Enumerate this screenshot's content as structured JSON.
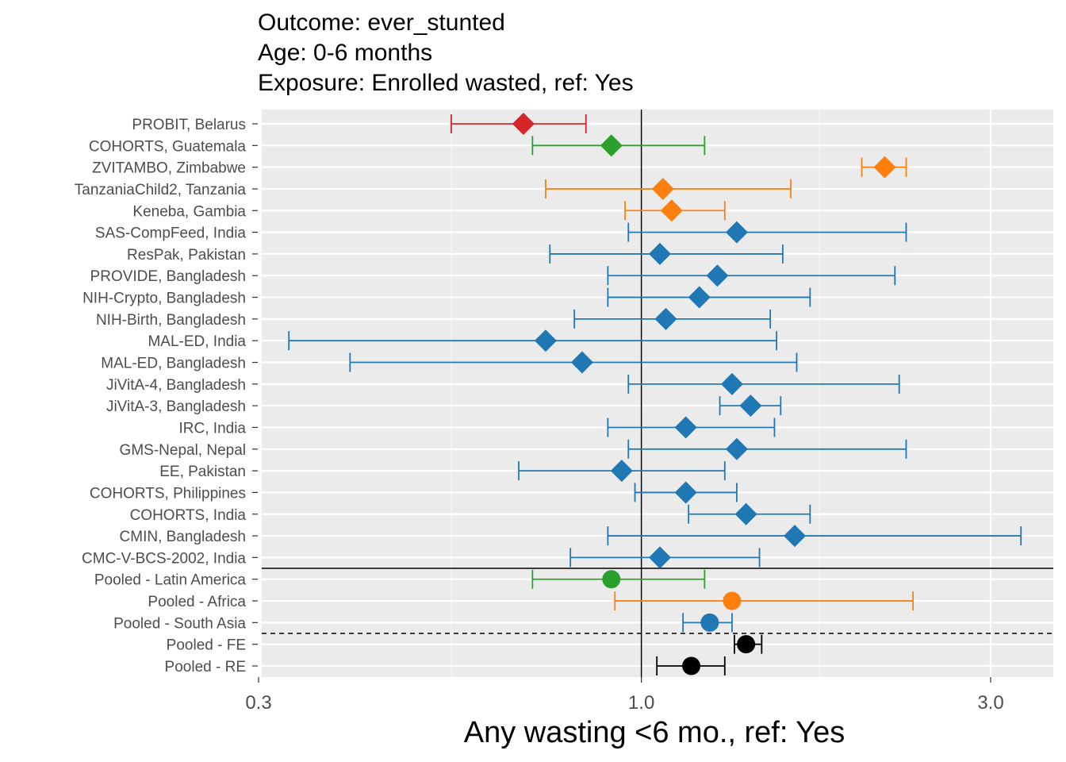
{
  "title_lines": [
    "Outcome: ever_stunted",
    "Age: 0-6 months",
    "Exposure: Enrolled wasted, ref: Yes"
  ],
  "chart_data": {
    "type": "scatter",
    "subtype": "forest-plot",
    "x_scale": "log",
    "xlabel": "Any wasting  <6 mo., ref: Yes",
    "xlim": [
      0.3,
      3.6
    ],
    "x_ticks": [
      {
        "value": 0.3,
        "label": "0.3"
      },
      {
        "value": 1.0,
        "label": "1.0"
      },
      {
        "value": 3.0,
        "label": "3.0"
      }
    ],
    "x_minor_ticks": [
      0.55,
      1.75
    ],
    "reference_line_x": 1.0,
    "region_colors": {
      "Europe": "#d62728",
      "Latin America": "#2ca02c",
      "Africa": "#ff7f0e",
      "South Asia": "#1f77b4",
      "Overall": "#000000"
    },
    "rows": [
      {
        "label": "PROBIT, Belarus",
        "est": 0.69,
        "lo": 0.55,
        "hi": 0.84,
        "region": "Europe",
        "shape": "diamond"
      },
      {
        "label": "COHORTS, Guatemala",
        "est": 0.91,
        "lo": 0.71,
        "hi": 1.22,
        "region": "Latin America",
        "shape": "diamond"
      },
      {
        "label": "ZVITAMBO, Zimbabwe",
        "est": 2.15,
        "lo": 2.0,
        "hi": 2.3,
        "region": "Africa",
        "shape": "diamond"
      },
      {
        "label": "TanzaniaChild2, Tanzania",
        "est": 1.07,
        "lo": 0.74,
        "hi": 1.6,
        "region": "Africa",
        "shape": "diamond"
      },
      {
        "label": "Keneba, Gambia",
        "est": 1.1,
        "lo": 0.95,
        "hi": 1.3,
        "region": "Africa",
        "shape": "diamond"
      },
      {
        "label": "SAS-CompFeed, India",
        "est": 1.35,
        "lo": 0.96,
        "hi": 2.3,
        "region": "South Asia",
        "shape": "diamond"
      },
      {
        "label": "ResPak, Pakistan",
        "est": 1.06,
        "lo": 0.75,
        "hi": 1.56,
        "region": "South Asia",
        "shape": "diamond"
      },
      {
        "label": "PROVIDE, Bangladesh",
        "est": 1.27,
        "lo": 0.9,
        "hi": 2.22,
        "region": "South Asia",
        "shape": "diamond"
      },
      {
        "label": "NIH-Crypto, Bangladesh",
        "est": 1.2,
        "lo": 0.9,
        "hi": 1.7,
        "region": "South Asia",
        "shape": "diamond"
      },
      {
        "label": "NIH-Birth, Bangladesh",
        "est": 1.08,
        "lo": 0.81,
        "hi": 1.5,
        "region": "South Asia",
        "shape": "diamond"
      },
      {
        "label": "MAL-ED, India",
        "est": 0.74,
        "lo": 0.33,
        "hi": 1.53,
        "region": "South Asia",
        "shape": "diamond"
      },
      {
        "label": "MAL-ED, Bangladesh",
        "est": 0.83,
        "lo": 0.4,
        "hi": 1.63,
        "region": "South Asia",
        "shape": "diamond"
      },
      {
        "label": "JiVitA-4, Bangladesh",
        "est": 1.33,
        "lo": 0.96,
        "hi": 2.25,
        "region": "South Asia",
        "shape": "diamond"
      },
      {
        "label": "JiVitA-3, Bangladesh",
        "est": 1.41,
        "lo": 1.28,
        "hi": 1.55,
        "region": "South Asia",
        "shape": "diamond"
      },
      {
        "label": "IRC, India",
        "est": 1.15,
        "lo": 0.9,
        "hi": 1.52,
        "region": "South Asia",
        "shape": "diamond"
      },
      {
        "label": "GMS-Nepal, Nepal",
        "est": 1.35,
        "lo": 0.96,
        "hi": 2.3,
        "region": "South Asia",
        "shape": "diamond"
      },
      {
        "label": "EE, Pakistan",
        "est": 0.94,
        "lo": 0.68,
        "hi": 1.3,
        "region": "South Asia",
        "shape": "diamond"
      },
      {
        "label": "COHORTS, Philippines",
        "est": 1.15,
        "lo": 0.98,
        "hi": 1.35,
        "region": "South Asia",
        "shape": "diamond"
      },
      {
        "label": "COHORTS, India",
        "est": 1.39,
        "lo": 1.16,
        "hi": 1.7,
        "region": "South Asia",
        "shape": "diamond"
      },
      {
        "label": "CMIN, Bangladesh",
        "est": 1.62,
        "lo": 0.9,
        "hi": 3.3,
        "region": "South Asia",
        "shape": "diamond"
      },
      {
        "label": "CMC-V-BCS-2002, India",
        "est": 1.06,
        "lo": 0.8,
        "hi": 1.45,
        "region": "South Asia",
        "shape": "diamond"
      },
      {
        "label": "Pooled - Latin America",
        "est": 0.91,
        "lo": 0.71,
        "hi": 1.22,
        "region": "Latin America",
        "shape": "circle"
      },
      {
        "label": "Pooled - Africa",
        "est": 1.33,
        "lo": 0.92,
        "hi": 2.35,
        "region": "Africa",
        "shape": "circle"
      },
      {
        "label": "Pooled - South Asia",
        "est": 1.24,
        "lo": 1.14,
        "hi": 1.33,
        "region": "South Asia",
        "shape": "circle"
      },
      {
        "label": "Pooled - FE",
        "est": 1.39,
        "lo": 1.34,
        "hi": 1.46,
        "region": "Overall",
        "shape": "circle"
      },
      {
        "label": "Pooled - RE",
        "est": 1.17,
        "lo": 1.05,
        "hi": 1.3,
        "region": "Overall",
        "shape": "circle"
      }
    ],
    "solid_separator_after": "CMC-V-BCS-2002, India",
    "dashed_separator_after": "Pooled - South Asia",
    "grid": true,
    "legend": "none"
  }
}
